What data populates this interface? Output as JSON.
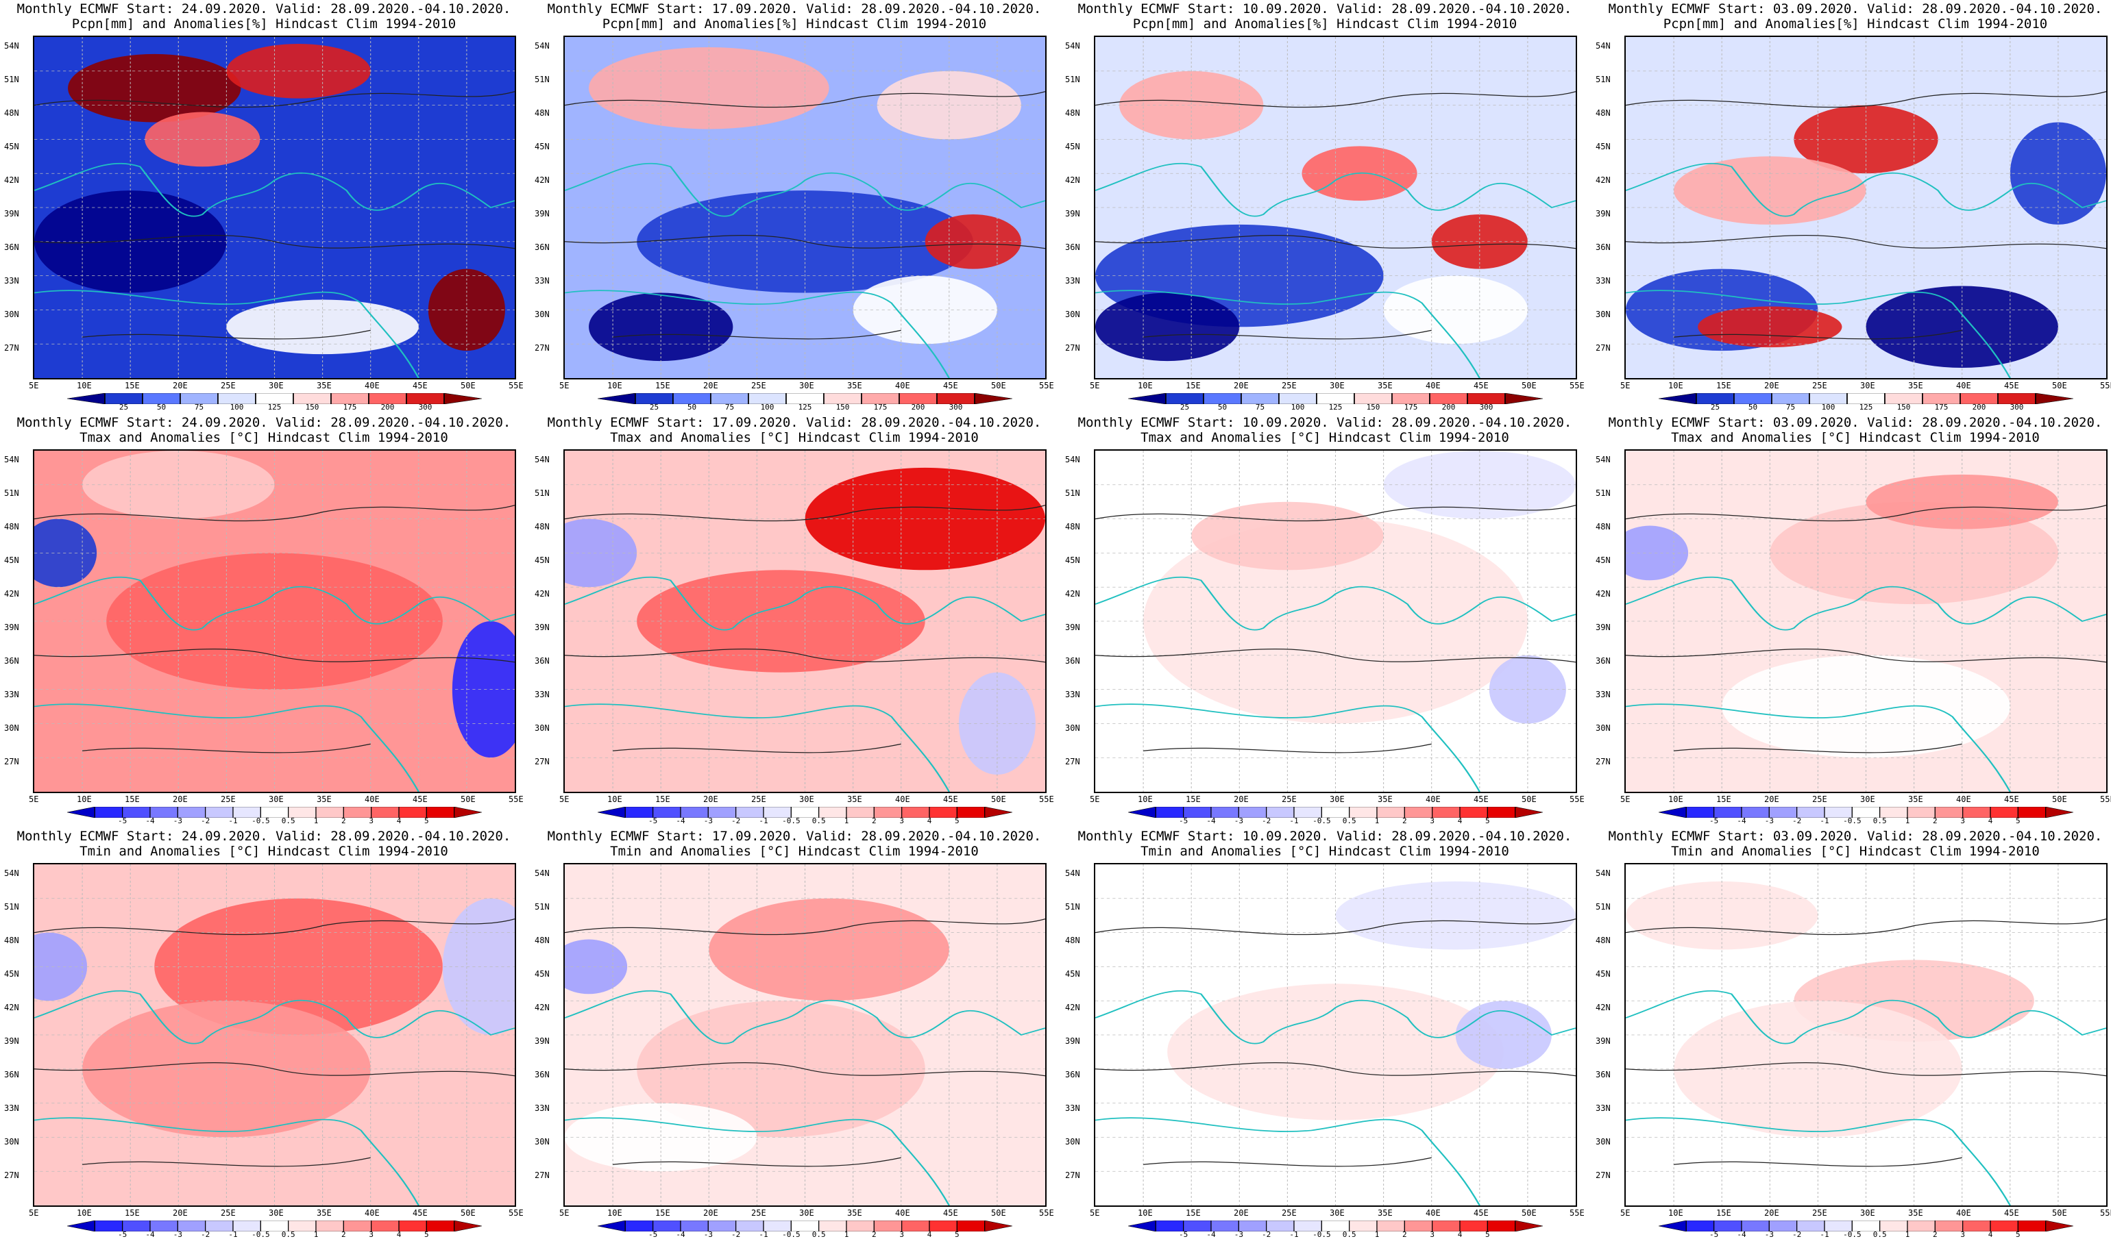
{
  "panels": [
    {
      "title1": "Monthly ECMWF Start: 24.09.2020. Valid: 28.09.2020.-04.10.2020.",
      "title2": "Pcpn[mm] and Anomalies[%] Hindcast Clim 1994-2010",
      "field": "precip"
    },
    {
      "title1": "Monthly ECMWF Start: 17.09.2020. Valid: 28.09.2020.-04.10.2020.",
      "title2": "Pcpn[mm] and Anomalies[%] Hindcast Clim 1994-2010",
      "field": "precip"
    },
    {
      "title1": "Monthly ECMWF Start: 10.09.2020. Valid: 28.09.2020.-04.10.2020.",
      "title2": "Pcpn[mm] and Anomalies[%] Hindcast Clim 1994-2010",
      "field": "precip"
    },
    {
      "title1": "Monthly ECMWF Start: 03.09.2020. Valid: 28.09.2020.-04.10.2020.",
      "title2": "Pcpn[mm] and Anomalies[%] Hindcast Clim 1994-2010",
      "field": "precip"
    },
    {
      "title1": "Monthly ECMWF Start: 24.09.2020. Valid: 28.09.2020.-04.10.2020.",
      "title2": "Tmax and Anomalies [°C] Hindcast Clim 1994-2010",
      "field": "tmax"
    },
    {
      "title1": "Monthly ECMWF Start: 17.09.2020. Valid: 28.09.2020.-04.10.2020.",
      "title2": "Tmax and Anomalies [°C] Hindcast Clim 1994-2010",
      "field": "tmax"
    },
    {
      "title1": "Monthly ECMWF Start: 10.09.2020. Valid: 28.09.2020.-04.10.2020.",
      "title2": "Tmax and Anomalies [°C] Hindcast Clim 1994-2010",
      "field": "tmax"
    },
    {
      "title1": "Monthly ECMWF Start: 03.09.2020. Valid: 28.09.2020.-04.10.2020.",
      "title2": "Tmax and Anomalies [°C] Hindcast Clim 1994-2010",
      "field": "tmax"
    },
    {
      "title1": "Monthly ECMWF Start: 24.09.2020. Valid: 28.09.2020.-04.10.2020.",
      "title2": "Tmin and Anomalies [°C] Hindcast Clim 1994-2010",
      "field": "tmin"
    },
    {
      "title1": "Monthly ECMWF Start: 17.09.2020. Valid: 28.09.2020.-04.10.2020.",
      "title2": "Tmin and Anomalies [°C] Hindcast Clim 1994-2010",
      "field": "tmin"
    },
    {
      "title1": "Monthly ECMWF Start: 10.09.2020. Valid: 28.09.2020.-04.10.2020.",
      "title2": "Tmin and Anomalies [°C] Hindcast Clim 1994-2010",
      "field": "tmin"
    },
    {
      "title1": "Monthly ECMWF Start: 03.09.2020. Valid: 28.09.2020.-04.10.2020.",
      "title2": "Tmin and Anomalies [°C] Hindcast Clim 1994-2010",
      "field": "tmin"
    }
  ],
  "lat_labels": [
    "54N",
    "51N",
    "48N",
    "45N",
    "42N",
    "39N",
    "36N",
    "33N",
    "30N",
    "27N"
  ],
  "lon_labels": [
    "5E",
    "10E",
    "15E",
    "20E",
    "25E",
    "30E",
    "35E",
    "40E",
    "45E",
    "50E",
    "55E"
  ],
  "precip_scale": {
    "labels": [
      "25",
      "50",
      "75",
      "100",
      "125",
      "150",
      "175",
      "200",
      "300"
    ],
    "colors": [
      "#00008b",
      "#1e3cd2",
      "#5a78ff",
      "#a0b4ff",
      "#dce4ff",
      "#ffffff",
      "#ffdcdc",
      "#ffaaaa",
      "#ff6464",
      "#dc1e1e",
      "#8b0000"
    ]
  },
  "temp_scale": {
    "labels": [
      "-5",
      "-4",
      "-3",
      "-2",
      "-1",
      "-0.5",
      "0.5",
      "1",
      "2",
      "3",
      "4",
      "5"
    ],
    "colors": [
      "#0000c8",
      "#2828ff",
      "#5050ff",
      "#7878ff",
      "#a0a0ff",
      "#c8c8ff",
      "#e6e6ff",
      "#ffffff",
      "#ffe6e6",
      "#ffc8c8",
      "#ff9696",
      "#ff6464",
      "#ff3232",
      "#e60000",
      "#b40000"
    ]
  },
  "panel_colors": {
    "precip": [
      {
        "base": "#1e3cd2",
        "blobs": [
          [
            "#8b0000",
            0.25,
            0.15,
            0.18,
            0.1
          ],
          [
            "#dc1e1e",
            0.55,
            0.1,
            0.15,
            0.08
          ],
          [
            "#ff6464",
            0.35,
            0.3,
            0.12,
            0.08
          ],
          [
            "#00008b",
            0.2,
            0.6,
            0.2,
            0.15
          ],
          [
            "#8b0000",
            0.9,
            0.8,
            0.08,
            0.12
          ],
          [
            "#ffffff",
            0.6,
            0.85,
            0.2,
            0.08
          ]
        ]
      },
      {
        "base": "#a0b4ff",
        "blobs": [
          [
            "#ffaaaa",
            0.3,
            0.15,
            0.25,
            0.12
          ],
          [
            "#1e3cd2",
            0.5,
            0.6,
            0.35,
            0.15
          ],
          [
            "#00008b",
            0.2,
            0.85,
            0.15,
            0.1
          ],
          [
            "#dc1e1e",
            0.85,
            0.6,
            0.1,
            0.08
          ],
          [
            "#ffffff",
            0.75,
            0.8,
            0.15,
            0.1
          ],
          [
            "#ffdcdc",
            0.8,
            0.2,
            0.15,
            0.1
          ]
        ]
      },
      {
        "base": "#dce4ff",
        "blobs": [
          [
            "#ffaaaa",
            0.2,
            0.2,
            0.15,
            0.1
          ],
          [
            "#ff6464",
            0.55,
            0.4,
            0.12,
            0.08
          ],
          [
            "#1e3cd2",
            0.3,
            0.7,
            0.3,
            0.15
          ],
          [
            "#00008b",
            0.15,
            0.85,
            0.15,
            0.1
          ],
          [
            "#dc1e1e",
            0.8,
            0.6,
            0.1,
            0.08
          ],
          [
            "#ffffff",
            0.75,
            0.8,
            0.15,
            0.1
          ]
        ]
      },
      {
        "base": "#dce4ff",
        "blobs": [
          [
            "#dc1e1e",
            0.5,
            0.3,
            0.15,
            0.1
          ],
          [
            "#ffaaaa",
            0.3,
            0.45,
            0.2,
            0.1
          ],
          [
            "#1e3cd2",
            0.2,
            0.8,
            0.2,
            0.12
          ],
          [
            "#00008b",
            0.7,
            0.85,
            0.2,
            0.12
          ],
          [
            "#dc1e1e",
            0.3,
            0.85,
            0.15,
            0.06
          ],
          [
            "#1e3cd2",
            0.9,
            0.4,
            0.1,
            0.15
          ]
        ]
      }
    ],
    "tmax": [
      {
        "base": "#ff9696",
        "blobs": [
          [
            "#ff6464",
            0.5,
            0.5,
            0.35,
            0.2
          ],
          [
            "#1e3cd2",
            0.05,
            0.3,
            0.08,
            0.1
          ],
          [
            "#2828ff",
            0.95,
            0.7,
            0.08,
            0.2
          ],
          [
            "#ffc8c8",
            0.3,
            0.1,
            0.2,
            0.1
          ]
        ]
      },
      {
        "base": "#ffc8c8",
        "blobs": [
          [
            "#e60000",
            0.75,
            0.2,
            0.25,
            0.15
          ],
          [
            "#ff6464",
            0.45,
            0.5,
            0.3,
            0.15
          ],
          [
            "#a0a0ff",
            0.05,
            0.3,
            0.1,
            0.1
          ],
          [
            "#c8c8ff",
            0.9,
            0.8,
            0.08,
            0.15
          ]
        ]
      },
      {
        "base": "#ffffff",
        "blobs": [
          [
            "#ffe6e6",
            0.5,
            0.5,
            0.4,
            0.3
          ],
          [
            "#ffc8c8",
            0.4,
            0.25,
            0.2,
            0.1
          ],
          [
            "#e6e6ff",
            0.8,
            0.1,
            0.2,
            0.1
          ],
          [
            "#c8c8ff",
            0.9,
            0.7,
            0.08,
            0.1
          ]
        ]
      },
      {
        "base": "#ffe6e6",
        "blobs": [
          [
            "#ffc8c8",
            0.6,
            0.3,
            0.3,
            0.15
          ],
          [
            "#ff9696",
            0.7,
            0.15,
            0.2,
            0.08
          ],
          [
            "#a0a0ff",
            0.05,
            0.3,
            0.08,
            0.08
          ],
          [
            "#ffffff",
            0.5,
            0.75,
            0.3,
            0.15
          ]
        ]
      }
    ],
    "tmin": [
      {
        "base": "#ffc8c8",
        "blobs": [
          [
            "#ff6464",
            0.55,
            0.3,
            0.3,
            0.2
          ],
          [
            "#ff9696",
            0.4,
            0.6,
            0.3,
            0.2
          ],
          [
            "#a0a0ff",
            0.03,
            0.3,
            0.08,
            0.1
          ],
          [
            "#c8c8ff",
            0.95,
            0.3,
            0.1,
            0.2
          ]
        ]
      },
      {
        "base": "#ffe6e6",
        "blobs": [
          [
            "#ff9696",
            0.55,
            0.25,
            0.25,
            0.15
          ],
          [
            "#ffc8c8",
            0.45,
            0.6,
            0.3,
            0.2
          ],
          [
            "#a0a0ff",
            0.05,
            0.3,
            0.08,
            0.08
          ],
          [
            "#ffffff",
            0.2,
            0.8,
            0.2,
            0.1
          ]
        ]
      },
      {
        "base": "#ffffff",
        "blobs": [
          [
            "#e6e6ff",
            0.75,
            0.15,
            0.25,
            0.1
          ],
          [
            "#ffe6e6",
            0.5,
            0.55,
            0.35,
            0.2
          ],
          [
            "#c8c8ff",
            0.85,
            0.5,
            0.1,
            0.1
          ]
        ]
      },
      {
        "base": "#ffffff",
        "blobs": [
          [
            "#ffc8c8",
            0.6,
            0.4,
            0.25,
            0.12
          ],
          [
            "#ffe6e6",
            0.4,
            0.6,
            0.3,
            0.2
          ],
          [
            "#ffe6e6",
            0.2,
            0.15,
            0.2,
            0.1
          ]
        ]
      }
    ]
  }
}
